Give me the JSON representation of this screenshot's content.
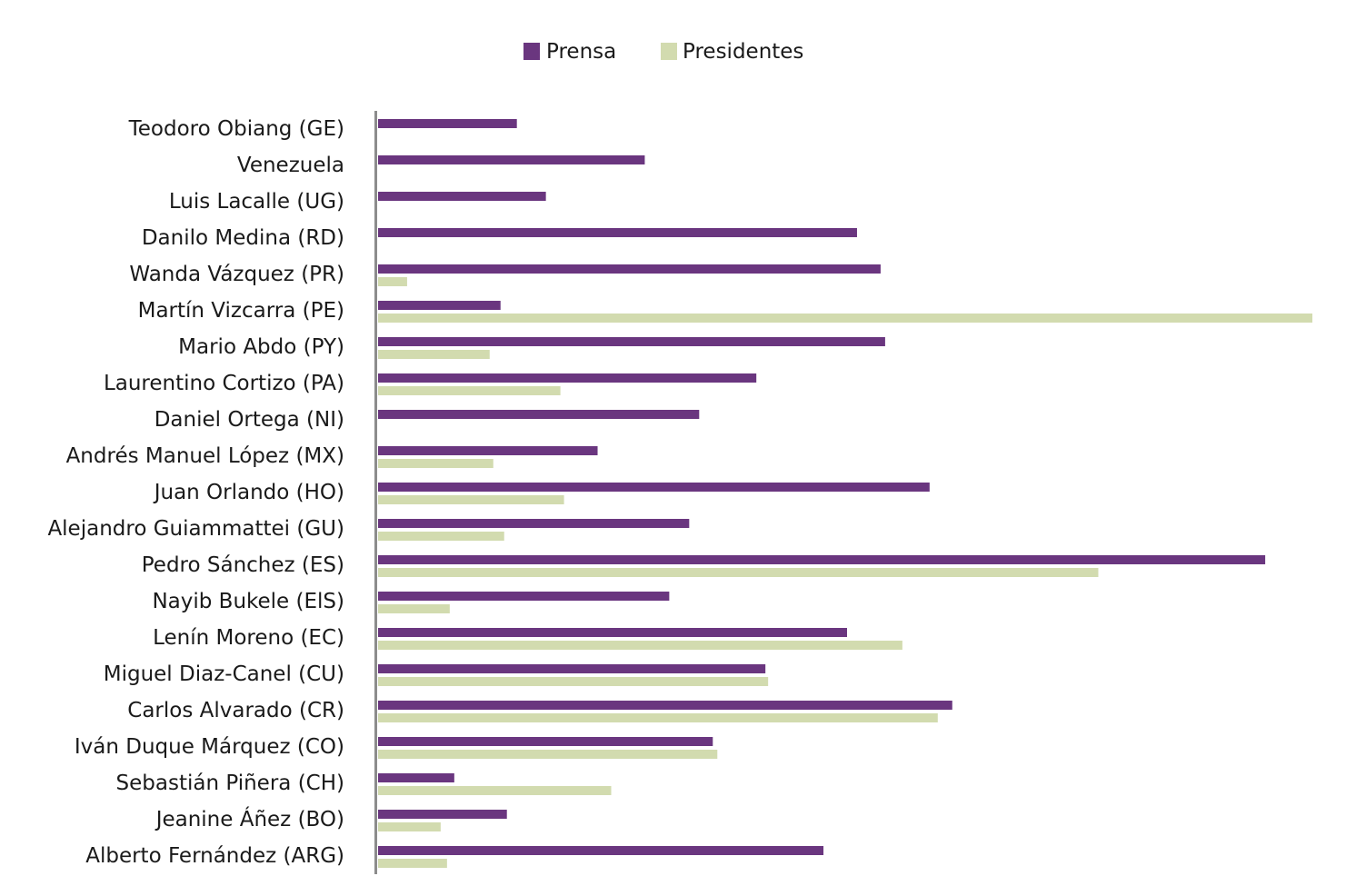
{
  "chart_data": {
    "type": "bar",
    "orientation": "horizontal",
    "categories": [
      "Teodoro Obiang (GE)",
      "Venezuela",
      "Luis Lacalle (UG)",
      "Danilo Medina (RD)",
      "Wanda Vázquez (PR)",
      "Martín Vizcarra (PE)",
      "Mario Abdo (PY)",
      "Laurentino Cortizo (PA)",
      "Daniel Ortega (NI)",
      "Andrés Manuel López  (MX)",
      "Juan Orlando (HO)",
      "Alejandro Guiammattei (GU)",
      "Pedro Sánchez (ES)",
      "Nayib Bukele (ElS)",
      "Lenín Moreno (EC)",
      "Miguel Diaz-Canel (CU)",
      "Carlos Alvarado (CR)",
      "Iván Duque Márquez (CO)",
      "Sebastián Piñera (CH)",
      "Jeanine Áñez (BO)",
      "Alberto Fernández (ARG)"
    ],
    "series": [
      {
        "name": "Prensa",
        "color": "#6a367f",
        "values": [
          153,
          294,
          185,
          528,
          554,
          135,
          559,
          417,
          354,
          242,
          608,
          343,
          978,
          321,
          517,
          427,
          633,
          369,
          84,
          142,
          491
        ]
      },
      {
        "name": "Presidentes",
        "color": "#d2dbaf",
        "values": [
          0,
          0,
          0,
          0,
          32,
          1030,
          123,
          201,
          0,
          127,
          205,
          139,
          794,
          79,
          578,
          430,
          617,
          374,
          257,
          69,
          76
        ]
      }
    ],
    "xlim": [
      0,
      1030
    ],
    "legend_position": "top-center",
    "grid": false,
    "axis_labels_shown": false
  }
}
